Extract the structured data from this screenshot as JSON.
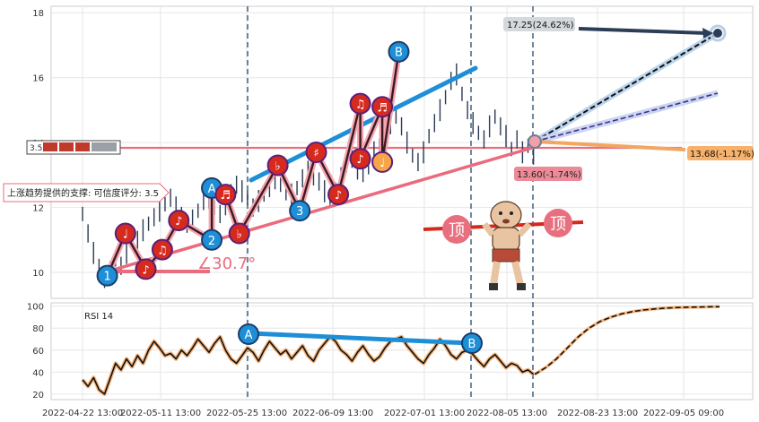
{
  "chart_data": [
    {
      "type": "line",
      "panel": "price",
      "x_ticks": [
        "2022-04-22 13:00",
        "2022-05-11 13:00",
        "2022-05-25 13:00",
        "2022-06-09 13:00",
        "2022-07-01 13:00",
        "2022-08-05 13:00",
        "2022-08-23 13:00",
        "2022-09-05 09:00"
      ],
      "ylim": [
        9.2,
        18.2
      ],
      "y_ticks": [
        "10",
        "12",
        "14",
        "16",
        "18"
      ],
      "grid": true,
      "series": [
        {
          "values": [
            11.8,
            11.2,
            10.6,
            10.2,
            9.8,
            10.0,
            10.4,
            10.2,
            10.6,
            10.9,
            11.0,
            11.3,
            11.5,
            11.7,
            11.9,
            12.1,
            12.3,
            12.0,
            11.8,
            11.5,
            11.6,
            11.9,
            12.2,
            12.3,
            12.0,
            11.8,
            12.1,
            12.5,
            12.7,
            12.5,
            12.3,
            12.0,
            12.2,
            12.4,
            12.6,
            12.9,
            12.7,
            12.5,
            12.4,
            12.6,
            12.9,
            13.1,
            12.9,
            12.8,
            12.5,
            12.3,
            12.5,
            12.9,
            13.3,
            13.5,
            13.2,
            13.0,
            13.3,
            13.7,
            13.9,
            14.3,
            14.6,
            14.8,
            14.5,
            14.0,
            13.6,
            13.4,
            13.7,
            14.2,
            14.6,
            15.0,
            15.4,
            15.9,
            16.1,
            15.5,
            15.0,
            14.6,
            14.3,
            14.1,
            14.5,
            14.8,
            14.5,
            14.2,
            13.8,
            14.1,
            13.7,
            13.9,
            13.6
          ]
        }
      ],
      "waves": {
        "points": [
          {
            "label": "1",
            "x": 4.5,
            "y": 9.9,
            "kind": "pivot"
          },
          {
            "label": "♩",
            "x": 7.8,
            "y": 11.2,
            "kind": "note"
          },
          {
            "label": "♪",
            "x": 11.5,
            "y": 10.1,
            "kind": "note"
          },
          {
            "label": "♫",
            "x": 14.5,
            "y": 10.7,
            "kind": "note"
          },
          {
            "label": "♪",
            "x": 17.5,
            "y": 11.6,
            "kind": "note"
          },
          {
            "label": "A",
            "x": 23.5,
            "y": 12.6,
            "kind": "pivot"
          },
          {
            "label": "2",
            "x": 23.5,
            "y": 11.0,
            "kind": "pivot"
          },
          {
            "label": "♬",
            "x": 26,
            "y": 12.4,
            "kind": "note"
          },
          {
            "label": "♭",
            "x": 28.5,
            "y": 11.2,
            "kind": "note"
          },
          {
            "label": "♭",
            "x": 35.5,
            "y": 13.3,
            "kind": "note"
          },
          {
            "label": "3",
            "x": 39.5,
            "y": 11.9,
            "kind": "pivot"
          },
          {
            "label": "♯",
            "x": 42.5,
            "y": 13.7,
            "kind": "note"
          },
          {
            "label": "♪",
            "x": 46.5,
            "y": 12.4,
            "kind": "note"
          },
          {
            "label": "♫",
            "x": 50.5,
            "y": 15.2,
            "kind": "note"
          },
          {
            "label": "♪",
            "x": 50.5,
            "y": 13.5,
            "kind": "note"
          },
          {
            "label": "♬",
            "x": 54.5,
            "y": 15.1,
            "kind": "note"
          },
          {
            "label": "♩",
            "x": 54.5,
            "y": 13.4,
            "kind": "note"
          },
          {
            "label": "B",
            "x": 57.5,
            "y": 16.8,
            "kind": "pivot"
          }
        ]
      },
      "annotations": {
        "angle_label": "∠30.7°",
        "target_label": "17.25(24.62%)",
        "projection_labels": [
          "13.68(-1.17%)",
          "13.60(-1.74%)"
        ],
        "support_note": "上涨趋势提供的支撑: 可信度评分: 3.5",
        "hline_tag": "3.5",
        "top_badge": "顶"
      }
    },
    {
      "type": "line",
      "panel": "rsi",
      "title": "RSI 14",
      "ylim": [
        15,
        103
      ],
      "y_ticks": [
        "20",
        "40",
        "60",
        "80",
        "100"
      ],
      "series": [
        {
          "values": [
            33,
            27,
            35,
            24,
            20,
            34,
            48,
            42,
            52,
            45,
            55,
            48,
            60,
            68,
            62,
            55,
            57,
            52,
            60,
            55,
            62,
            70,
            64,
            58,
            66,
            72,
            60,
            52,
            48,
            55,
            62,
            58,
            50,
            60,
            68,
            62,
            56,
            60,
            52,
            58,
            64,
            55,
            50,
            60,
            66,
            72,
            68,
            60,
            56,
            50,
            58,
            64,
            56,
            50,
            54,
            62,
            68,
            70,
            72,
            64,
            58,
            52,
            48,
            56,
            62,
            70,
            64,
            56,
            52,
            58,
            60,
            56,
            50,
            45,
            52,
            56,
            50,
            44,
            48,
            46,
            40,
            42,
            38
          ]
        },
        {
          "values": [
            38,
            44,
            52,
            62,
            72,
            80,
            86,
            90,
            93,
            95,
            96.5,
            97.5,
            98.2,
            98.7,
            99,
            99.2,
            99.4,
            99.5
          ]
        }
      ]
    }
  ]
}
